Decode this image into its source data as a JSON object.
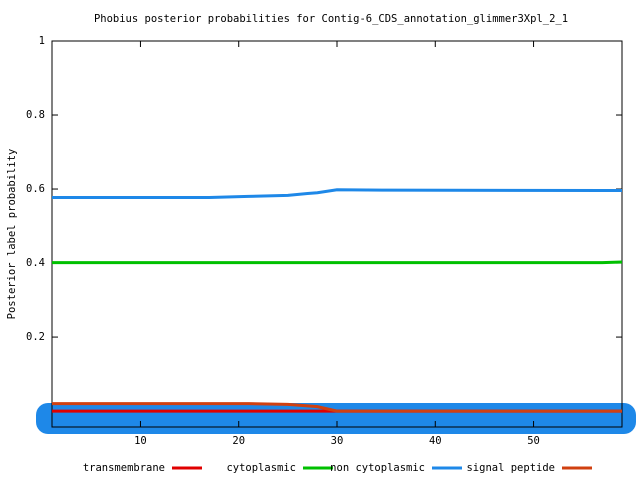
{
  "chart_data": {
    "type": "line",
    "title": "Phobius posterior probabilities for Contig-6_CDS_annotation_glimmer3Xpl_2_1",
    "y_label": "Posterior label probability",
    "x": [
      1,
      17,
      21,
      25,
      27,
      28,
      30,
      35,
      57,
      59
    ],
    "series": [
      {
        "name": "transmembrane",
        "color": "#e00000",
        "values": [
          0,
          0,
          0,
          0,
          0,
          0,
          0,
          0,
          0,
          0
        ]
      },
      {
        "name": "cytoplasmic",
        "color": "#00c000",
        "values": [
          0.401,
          0.401,
          0.401,
          0.401,
          0.401,
          0.401,
          0.401,
          0.401,
          0.401,
          0.403
        ]
      },
      {
        "name": "non cytoplasmic",
        "color": "#1e88e8",
        "values": [
          0.577,
          0.577,
          0.58,
          0.583,
          0.588,
          0.59,
          0.598,
          0.597,
          0.596,
          0.596
        ]
      },
      {
        "name": "signal peptide",
        "color": "#d04010",
        "values": [
          0.02,
          0.02,
          0.02,
          0.018,
          0.014,
          0.012,
          0,
          0,
          0,
          0
        ]
      }
    ],
    "xlim": [
      1,
      59
    ],
    "ylim": [
      -0.043,
      1
    ],
    "xticks": [
      10,
      20,
      30,
      40,
      50
    ],
    "yticks": [
      0.2,
      0.4,
      0.6,
      0.8,
      1
    ]
  }
}
